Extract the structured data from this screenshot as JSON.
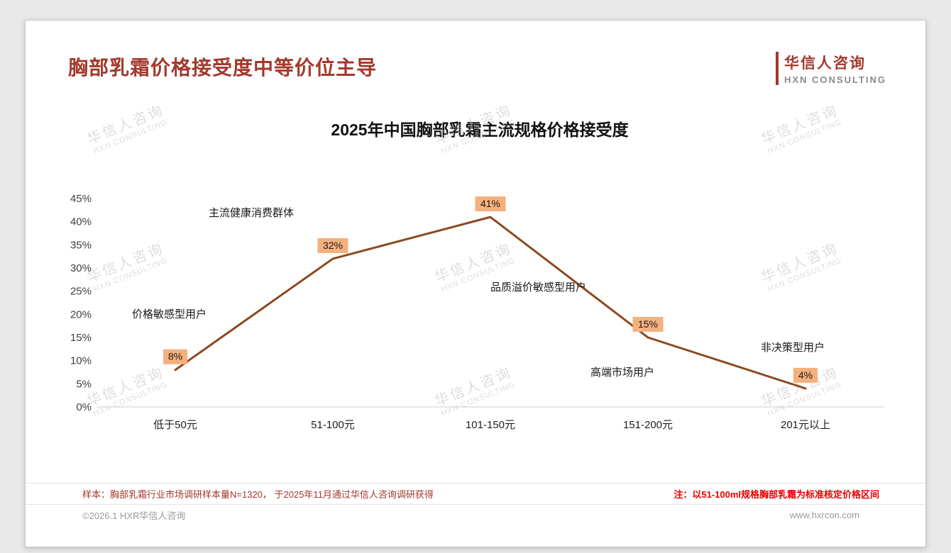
{
  "header": {
    "title": "胸部乳霜价格接受度中等价位主导",
    "logo": {
      "cn": "华信人咨询",
      "en": "HXN CONSULTING"
    }
  },
  "chart_data": {
    "type": "line",
    "title": "2025年中国胸部乳霜主流规格价格接受度",
    "categories": [
      "低于50元",
      "51-100元",
      "101-150元",
      "151-200元",
      "201元以上"
    ],
    "values": [
      8,
      32,
      41,
      15,
      4
    ],
    "value_labels": [
      "8%",
      "32%",
      "41%",
      "15%",
      "4%"
    ],
    "annotations": [
      "价格敏感型用户",
      "主流健康消费群体",
      "品质溢价敏感型用户",
      "高端市场用户",
      "非决策型用户"
    ],
    "ylim": [
      0,
      45
    ],
    "ytick_step": 5,
    "ytick_suffix": "%",
    "grid": false,
    "legend": "none",
    "line_color": "#8c4a1f",
    "label_bg_color": "#f5b07d"
  },
  "notes": {
    "sample": "样本：胸部乳霜行业市场调研样本量N=1320， 于2025年11月通过华信人咨询调研获得",
    "standard": "注：以51-100ml规格胸部乳霜为标准核定价格区间"
  },
  "footer": {
    "copyright": "©2026.1 HXR华信人咨询",
    "website": "www.hxrcon.com"
  },
  "watermark": {
    "cn": "华信人咨询",
    "en": "HXN CONSULTING"
  }
}
